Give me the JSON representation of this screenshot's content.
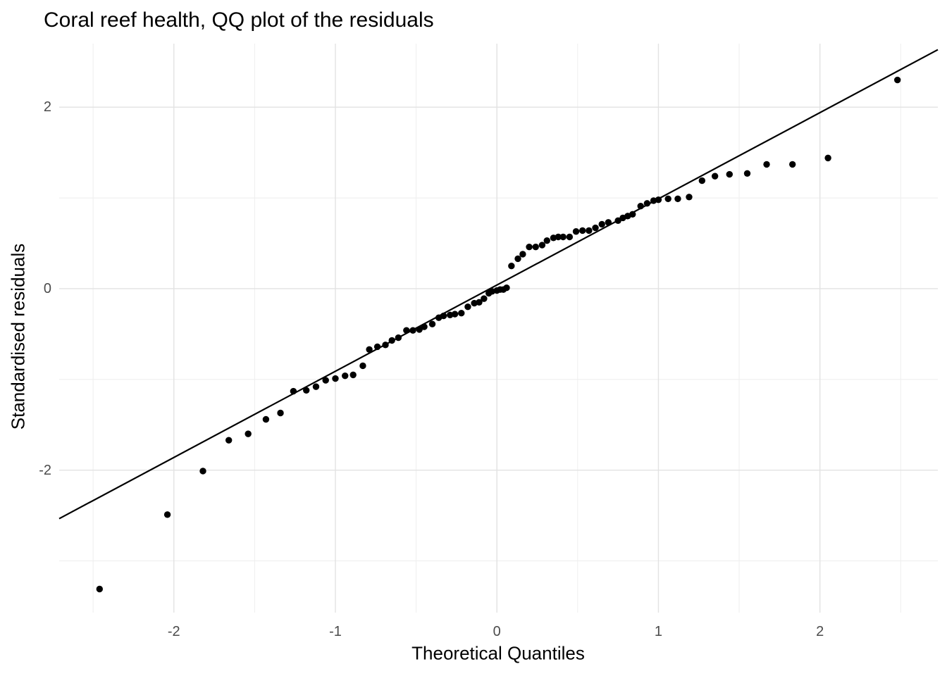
{
  "chart_data": {
    "type": "scatter",
    "title": "Coral reef health, QQ plot of the residuals",
    "xlabel": "Theoretical Quantiles",
    "ylabel": "Standardised residuals",
    "x_ticks": [
      -2,
      -1,
      0,
      1,
      2
    ],
    "y_ticks": [
      -2,
      0,
      2
    ],
    "x_minor_ticks": [
      -2.5,
      -1.5,
      -0.5,
      0.5,
      1.5,
      2.5
    ],
    "y_minor_ticks": [
      -3,
      -1,
      1
    ],
    "xlim": [
      -2.71,
      2.73
    ],
    "ylim": [
      -3.57,
      2.7
    ],
    "grid": true,
    "legend": "none",
    "reference_line": {
      "slope": 0.95,
      "intercept": 0.04
    },
    "points": {
      "x": [
        -2.46,
        -2.04,
        -1.82,
        -1.66,
        -1.54,
        -1.43,
        -1.34,
        -1.26,
        -1.18,
        -1.12,
        -1.06,
        -1.0,
        -0.94,
        -0.89,
        -0.83,
        -0.79,
        -0.74,
        -0.69,
        -0.65,
        -0.61,
        -0.56,
        -0.52,
        -0.48,
        -0.45,
        -0.4,
        -0.36,
        -0.33,
        -0.29,
        -0.26,
        -0.22,
        -0.18,
        -0.14,
        -0.11,
        -0.08,
        -0.05,
        -0.03,
        0.0,
        0.02,
        0.04,
        0.06,
        0.09,
        0.13,
        0.16,
        0.2,
        0.24,
        0.28,
        0.31,
        0.35,
        0.38,
        0.41,
        0.45,
        0.49,
        0.53,
        0.57,
        0.61,
        0.65,
        0.69,
        0.75,
        0.78,
        0.81,
        0.84,
        0.89,
        0.93,
        0.97,
        1.0,
        1.06,
        1.12,
        1.19,
        1.27,
        1.35,
        1.44,
        1.55,
        1.67,
        1.83,
        2.05,
        2.48
      ],
      "y": [
        -3.31,
        -2.49,
        -2.01,
        -1.67,
        -1.6,
        -1.44,
        -1.37,
        -1.13,
        -1.12,
        -1.08,
        -1.01,
        -0.99,
        -0.96,
        -0.95,
        -0.85,
        -0.67,
        -0.64,
        -0.62,
        -0.57,
        -0.54,
        -0.46,
        -0.46,
        -0.45,
        -0.42,
        -0.39,
        -0.32,
        -0.3,
        -0.29,
        -0.28,
        -0.27,
        -0.2,
        -0.16,
        -0.15,
        -0.11,
        -0.05,
        -0.03,
        -0.02,
        -0.01,
        -0.01,
        0.01,
        0.25,
        0.33,
        0.38,
        0.46,
        0.46,
        0.48,
        0.53,
        0.56,
        0.57,
        0.57,
        0.57,
        0.63,
        0.64,
        0.64,
        0.67,
        0.71,
        0.73,
        0.75,
        0.78,
        0.8,
        0.82,
        0.91,
        0.94,
        0.97,
        0.98,
        0.99,
        0.99,
        1.01,
        1.19,
        1.24,
        1.26,
        1.27,
        1.37,
        1.37,
        1.44,
        2.3
      ]
    },
    "colors": {
      "point": "#000000",
      "line": "#000000",
      "grid_major": "#e2e2e2",
      "grid_minor": "#eeeeee",
      "tick_label": "#4b4b4b",
      "title": "#000000",
      "background": "#ffffff"
    }
  }
}
